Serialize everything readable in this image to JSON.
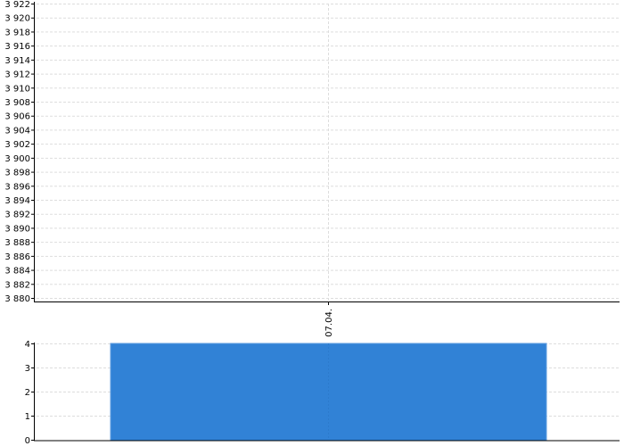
{
  "chart_data": [
    {
      "type": "line",
      "categories": [
        "07.04."
      ],
      "series": [],
      "ylim": [
        3880,
        3922
      ],
      "yticks": [
        3880,
        3882,
        3884,
        3886,
        3888,
        3890,
        3892,
        3894,
        3896,
        3898,
        3900,
        3902,
        3904,
        3906,
        3908,
        3910,
        3912,
        3914,
        3916,
        3918,
        3920,
        3922
      ],
      "ytick_labels": [
        "3 880",
        "3 882",
        "3 884",
        "3 886",
        "3 888",
        "3 890",
        "3 892",
        "3 894",
        "3 896",
        "3 898",
        "3 900",
        "3 902",
        "3 904",
        "3 906",
        "3 908",
        "3 910",
        "3 912",
        "3 914",
        "3 916",
        "3 918",
        "3 920",
        "3 922"
      ],
      "grid": true
    },
    {
      "type": "bar",
      "categories": [
        "07.04."
      ],
      "values": [
        4
      ],
      "ylim": [
        0,
        4
      ],
      "yticks": [
        0,
        1,
        2,
        3,
        4
      ],
      "ytick_labels": [
        "0",
        "1",
        "2",
        "3",
        "4"
      ],
      "bar_color": "#3182d6",
      "grid": true
    }
  ]
}
